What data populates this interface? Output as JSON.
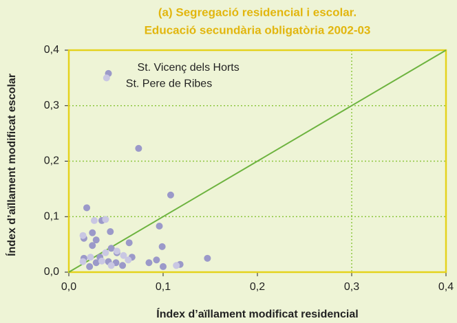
{
  "chart_data": {
    "type": "scatter",
    "title": "(a) Segregació residencial i escolar.",
    "subtitle": "Educació secundària obligatòria 2002-03",
    "x_label": "Índex d’aïllament modificat residencial",
    "y_label": "Índex d’aïllament modificat escolar",
    "xlim": [
      0,
      0.4
    ],
    "ylim": [
      0,
      0.4
    ],
    "xticks": [
      {
        "value": 0,
        "label": "0,0"
      },
      {
        "value": 0.1,
        "label": "0,1"
      },
      {
        "value": 0.2,
        "label": "0,2"
      },
      {
        "value": 0.3,
        "label": "0,3"
      },
      {
        "value": 0.4,
        "label": "0,4"
      }
    ],
    "yticks": [
      {
        "value": 0,
        "label": "0,0"
      },
      {
        "value": 0.1,
        "label": "0,1"
      },
      {
        "value": 0.2,
        "label": "0,2"
      },
      {
        "value": 0.3,
        "label": "0,3"
      },
      {
        "value": 0.4,
        "label": "0,4"
      }
    ],
    "grid": "y",
    "vline": 0.3,
    "diagonal": true,
    "series": [
      {
        "color": "#9b99c9",
        "x": [
          0.042,
          0.074,
          0.108,
          0.019,
          0.035,
          0.096,
          0.025,
          0.044,
          0.016,
          0.029,
          0.064,
          0.045,
          0.099,
          0.025,
          0.051,
          0.016,
          0.033,
          0.067,
          0.085,
          0.093,
          0.147,
          0.118,
          0.029,
          0.042,
          0.057,
          0.1,
          0.022,
          0.05
        ],
        "values": [
          0.358,
          0.223,
          0.139,
          0.116,
          0.093,
          0.083,
          0.071,
          0.073,
          0.061,
          0.058,
          0.053,
          0.043,
          0.046,
          0.048,
          0.035,
          0.025,
          0.027,
          0.027,
          0.017,
          0.022,
          0.025,
          0.014,
          0.017,
          0.019,
          0.012,
          0.01,
          0.01,
          0.017
        ]
      },
      {
        "color": "#c9c7e3",
        "x": [
          0.04,
          0.039,
          0.027,
          0.015,
          0.051,
          0.039,
          0.058,
          0.023,
          0.035,
          0.063,
          0.114,
          0.015,
          0.045
        ],
        "values": [
          0.35,
          0.095,
          0.093,
          0.066,
          0.038,
          0.035,
          0.03,
          0.027,
          0.02,
          0.022,
          0.012,
          0.019,
          0.012
        ]
      }
    ],
    "annotations": [
      {
        "text": "St. Vicenç dels Horts",
        "x": 0.042,
        "y": 0.358
      },
      {
        "text": "St. Pere de Ribes",
        "x": 0.04,
        "y": 0.35
      }
    ]
  }
}
